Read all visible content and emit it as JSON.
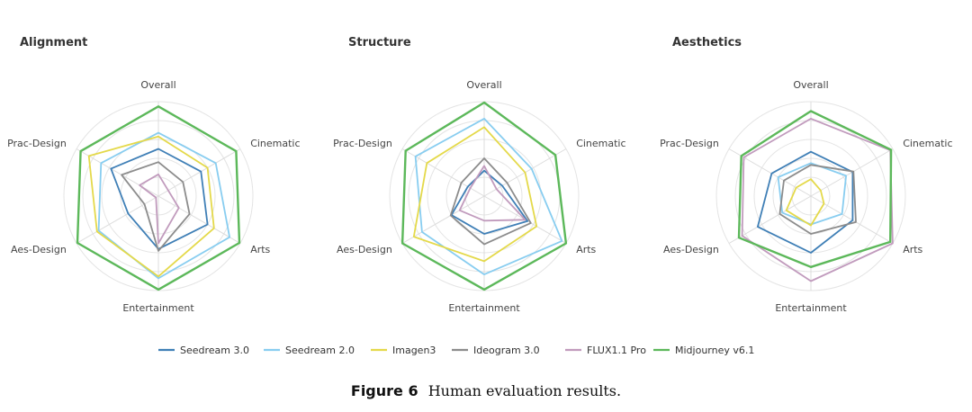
{
  "chart_data": [
    {
      "type": "radar",
      "title": "Alignment",
      "axes": [
        "Overall",
        "Cinematic",
        "Arts",
        "Entertainment",
        "Aes-Design",
        "Prac-Design"
      ],
      "rmax": 1.0,
      "rings": 5,
      "series": [
        {
          "name": "Seedream 3.0",
          "values": [
            0.5,
            0.52,
            0.6,
            0.56,
            0.37,
            0.58
          ]
        },
        {
          "name": "Seedream 2.0",
          "values": [
            0.67,
            0.7,
            0.87,
            0.87,
            0.73,
            0.7
          ]
        },
        {
          "name": "Imagen3",
          "values": [
            0.63,
            0.6,
            0.68,
            0.85,
            0.75,
            0.85
          ]
        },
        {
          "name": "Ideogram 3.0",
          "values": [
            0.36,
            0.3,
            0.38,
            0.58,
            0.17,
            0.45
          ]
        },
        {
          "name": "FLUX1.1 Pro",
          "values": [
            0.23,
            0.12,
            0.25,
            0.5,
            0.03,
            0.23
          ]
        },
        {
          "name": "Midjourney v6.1",
          "values": [
            0.95,
            0.95,
            0.99,
            0.99,
            0.99,
            0.95
          ]
        }
      ]
    },
    {
      "type": "radar",
      "title": "Structure",
      "axes": [
        "Overall",
        "Cinematic",
        "Arts",
        "Entertainment",
        "Aes-Design",
        "Prac-Design"
      ],
      "rmax": 1.0,
      "rings": 5,
      "series": [
        {
          "name": "Seedream 3.0",
          "values": [
            0.27,
            0.22,
            0.53,
            0.4,
            0.4,
            0.2
          ]
        },
        {
          "name": "Seedream 2.0",
          "values": [
            0.82,
            0.58,
            0.95,
            0.83,
            0.76,
            0.84
          ]
        },
        {
          "name": "Imagen3",
          "values": [
            0.73,
            0.5,
            0.64,
            0.69,
            0.86,
            0.7
          ]
        },
        {
          "name": "Ideogram 3.0",
          "values": [
            0.4,
            0.28,
            0.57,
            0.51,
            0.41,
            0.28
          ]
        },
        {
          "name": "FLUX1.1 Pro",
          "values": [
            0.32,
            0.15,
            0.5,
            0.26,
            0.3,
            0.17
          ]
        },
        {
          "name": "Midjourney v6.1",
          "values": [
            0.99,
            0.87,
            1.0,
            0.99,
            1.0,
            0.96
          ]
        }
      ]
    },
    {
      "type": "radar",
      "title": "Aesthetics",
      "axes": [
        "Overall",
        "Cinematic",
        "Arts",
        "Entertainment",
        "Aes-Design",
        "Prac-Design"
      ],
      "rmax": 1.0,
      "rings": 5,
      "series": [
        {
          "name": "Seedream 3.0",
          "values": [
            0.47,
            0.51,
            0.51,
            0.6,
            0.65,
            0.48
          ]
        },
        {
          "name": "Seedream 2.0",
          "values": [
            0.35,
            0.43,
            0.38,
            0.3,
            0.35,
            0.4
          ]
        },
        {
          "name": "Imagen3",
          "values": [
            0.18,
            0.12,
            0.16,
            0.31,
            0.3,
            0.18
          ]
        },
        {
          "name": "Ideogram 3.0",
          "values": [
            0.33,
            0.52,
            0.55,
            0.4,
            0.38,
            0.33
          ]
        },
        {
          "name": "FLUX1.1 Pro",
          "values": [
            0.82,
            0.97,
            1.0,
            0.9,
            0.84,
            0.82
          ]
        },
        {
          "name": "Midjourney v6.1",
          "values": [
            0.9,
            0.98,
            0.97,
            0.75,
            0.88,
            0.85
          ]
        }
      ]
    }
  ],
  "legend": {
    "placement": "bottom-center",
    "entries": [
      {
        "name": "Seedream 3.0",
        "color": "#3f7fb6"
      },
      {
        "name": "Seedream 2.0",
        "color": "#88cdf0"
      },
      {
        "name": "Imagen3",
        "color": "#e4d94a"
      },
      {
        "name": "Ideogram 3.0",
        "color": "#8c8c8c"
      },
      {
        "name": "FLUX1.1 Pro",
        "color": "#c19bbd"
      },
      {
        "name": "Midjourney v6.1",
        "color": "#5cb85a"
      }
    ]
  },
  "caption": {
    "label": "Figure 6",
    "text": "Human evaluation results."
  }
}
